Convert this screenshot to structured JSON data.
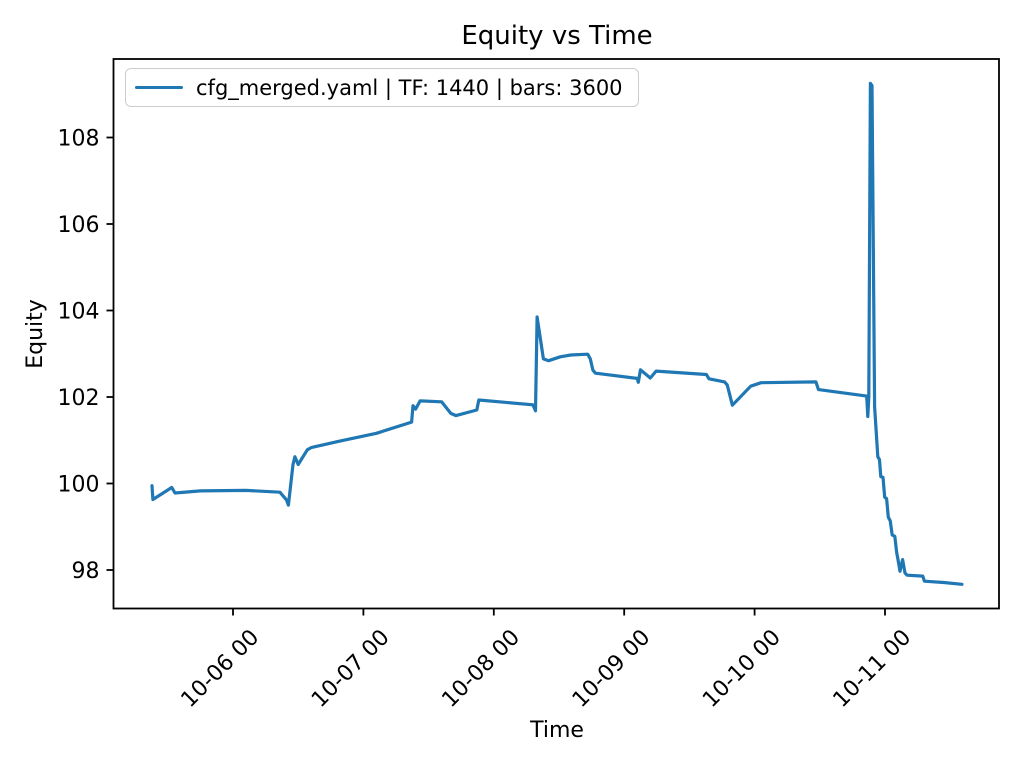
{
  "figure": {
    "title": "Equity vs Time",
    "xlabel": "Time",
    "ylabel": "Equity"
  },
  "legend": {
    "label": "cfg_merged.yaml | TF: 1440 | bars: 3600",
    "line_color": "#1f77b4"
  },
  "chart_data": {
    "type": "line",
    "title": "Equity vs Time",
    "xlabel": "Time",
    "ylabel": "Equity",
    "grid": false,
    "legend_position": "upper left",
    "x_unit": "days since 10-05 00:00",
    "x_ticks": [
      {
        "day": 1,
        "label": "10-06 00"
      },
      {
        "day": 2,
        "label": "10-07 00"
      },
      {
        "day": 3,
        "label": "10-08 00"
      },
      {
        "day": 4,
        "label": "10-09 00"
      },
      {
        "day": 5,
        "label": "10-10 00"
      },
      {
        "day": 6,
        "label": "10-11 00"
      }
    ],
    "y_ticks": [
      98,
      100,
      102,
      104,
      106,
      108
    ],
    "xlim_days": [
      0.095,
      6.88
    ],
    "ylim": [
      97.1,
      109.85
    ],
    "series": [
      {
        "name": "cfg_merged.yaml | TF: 1440 | bars: 3600",
        "color": "#1f77b4",
        "points": [
          [
            0.379,
            99.95
          ],
          [
            0.386,
            99.63
          ],
          [
            0.5,
            99.85
          ],
          [
            0.53,
            99.91
          ],
          [
            0.555,
            99.78
          ],
          [
            0.75,
            99.83
          ],
          [
            1.1,
            99.84
          ],
          [
            1.36,
            99.8
          ],
          [
            1.41,
            99.62
          ],
          [
            1.425,
            99.5
          ],
          [
            1.46,
            100.44
          ],
          [
            1.475,
            100.62
          ],
          [
            1.5,
            100.44
          ],
          [
            1.57,
            100.78
          ],
          [
            1.6,
            100.83
          ],
          [
            1.82,
            100.98
          ],
          [
            2.1,
            101.16
          ],
          [
            2.37,
            101.42
          ],
          [
            2.38,
            101.8
          ],
          [
            2.4,
            101.72
          ],
          [
            2.435,
            101.91
          ],
          [
            2.6,
            101.89
          ],
          [
            2.67,
            101.62
          ],
          [
            2.71,
            101.57
          ],
          [
            2.87,
            101.7
          ],
          [
            2.885,
            101.93
          ],
          [
            3.3,
            101.82
          ],
          [
            3.32,
            101.68
          ],
          [
            3.332,
            103.85
          ],
          [
            3.38,
            102.88
          ],
          [
            3.42,
            102.84
          ],
          [
            3.51,
            102.93
          ],
          [
            3.59,
            102.97
          ],
          [
            3.72,
            102.99
          ],
          [
            3.74,
            102.88
          ],
          [
            3.76,
            102.62
          ],
          [
            3.78,
            102.55
          ],
          [
            4.1,
            102.43
          ],
          [
            4.108,
            102.34
          ],
          [
            4.125,
            102.63
          ],
          [
            4.2,
            102.44
          ],
          [
            4.245,
            102.6
          ],
          [
            4.63,
            102.52
          ],
          [
            4.65,
            102.42
          ],
          [
            4.77,
            102.35
          ],
          [
            4.79,
            102.28
          ],
          [
            4.83,
            101.81
          ],
          [
            4.97,
            102.25
          ],
          [
            5.05,
            102.33
          ],
          [
            5.47,
            102.35
          ],
          [
            5.49,
            102.17
          ],
          [
            5.86,
            102.02
          ],
          [
            5.868,
            101.55
          ],
          [
            5.876,
            102.0
          ],
          [
            5.888,
            109.25
          ],
          [
            5.9,
            109.2
          ],
          [
            5.92,
            101.78
          ],
          [
            5.945,
            100.62
          ],
          [
            5.958,
            100.55
          ],
          [
            5.968,
            100.16
          ],
          [
            5.985,
            100.14
          ],
          [
            5.998,
            99.68
          ],
          [
            6.012,
            99.65
          ],
          [
            6.025,
            99.22
          ],
          [
            6.04,
            99.14
          ],
          [
            6.055,
            98.81
          ],
          [
            6.075,
            98.78
          ],
          [
            6.09,
            98.4
          ],
          [
            6.1,
            98.24
          ],
          [
            6.115,
            97.97
          ],
          [
            6.135,
            98.24
          ],
          [
            6.153,
            97.93
          ],
          [
            6.17,
            97.88
          ],
          [
            6.29,
            97.86
          ],
          [
            6.302,
            97.74
          ],
          [
            6.45,
            97.71
          ],
          [
            6.59,
            97.67
          ]
        ]
      }
    ]
  }
}
